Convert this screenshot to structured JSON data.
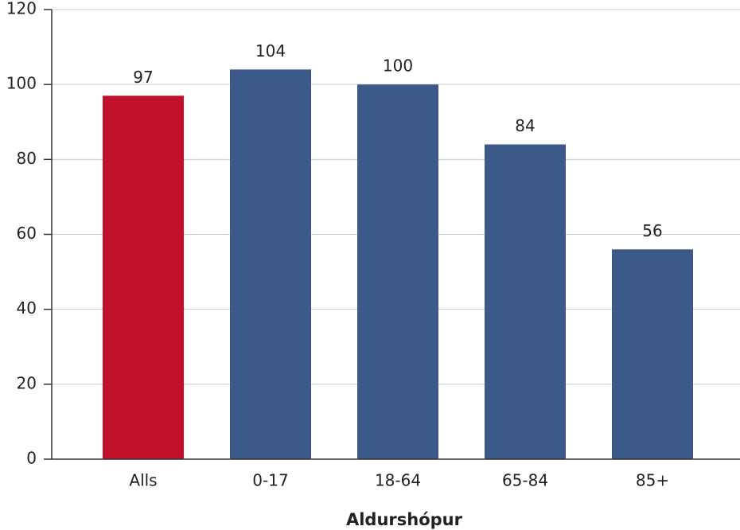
{
  "chart_data": {
    "type": "bar",
    "categories": [
      "Alls",
      "0-17",
      "18-64",
      "65-84",
      "85+"
    ],
    "values": [
      97,
      104,
      100,
      84,
      56
    ],
    "colors": [
      "#c0102a",
      "#3b5a8a",
      "#3b5a8a",
      "#3b5a8a",
      "#3b5a8a"
    ],
    "ylim": [
      0,
      120
    ],
    "yticks": [
      0,
      20,
      40,
      60,
      80,
      100,
      120
    ],
    "grid": true,
    "x_label": "Aldurshópur"
  }
}
